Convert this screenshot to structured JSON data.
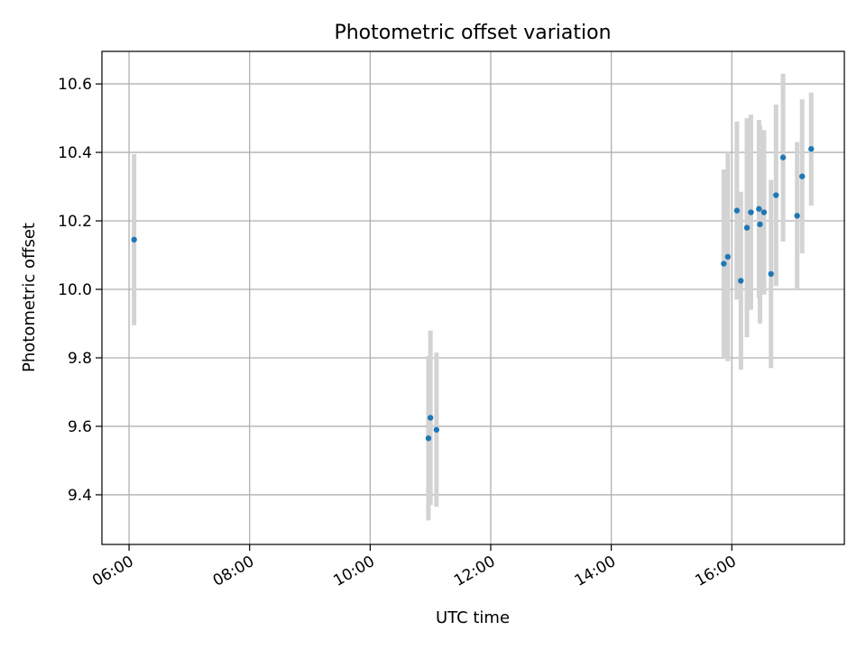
{
  "chart_data": {
    "type": "scatter",
    "title": "Photometric offset variation",
    "xlabel": "UTC time",
    "ylabel": "Photometric offset",
    "x_unit": "UTC time",
    "xlim": [
      "05:33",
      "17:52"
    ],
    "ylim": [
      9.255,
      10.695
    ],
    "grid": true,
    "x_ticks": [
      "06:00",
      "08:00",
      "10:00",
      "12:00",
      "14:00",
      "16:00"
    ],
    "y_ticks": [
      "9.4",
      "9.6",
      "9.8",
      "10.0",
      "10.2",
      "10.4",
      "10.6"
    ],
    "series": [
      {
        "points": [
          {
            "x": "06:05",
            "y": 10.145,
            "yerr": 0.25
          },
          {
            "x": "10:58",
            "y": 9.565,
            "yerr": 0.24
          },
          {
            "x": "11:00",
            "y": 9.625,
            "yerr": 0.255
          },
          {
            "x": "11:06",
            "y": 9.59,
            "yerr": 0.225
          },
          {
            "x": "15:52",
            "y": 10.075,
            "yerr": 0.275
          },
          {
            "x": "15:56",
            "y": 10.095,
            "yerr": 0.305
          },
          {
            "x": "16:05",
            "y": 10.23,
            "yerr": 0.26
          },
          {
            "x": "16:09",
            "y": 10.025,
            "yerr": 0.26
          },
          {
            "x": "16:15",
            "y": 10.18,
            "yerr": 0.32
          },
          {
            "x": "16:19",
            "y": 10.225,
            "yerr": 0.285
          },
          {
            "x": "16:27",
            "y": 10.235,
            "yerr": 0.26
          },
          {
            "x": "16:28",
            "y": 10.19,
            "yerr": 0.29
          },
          {
            "x": "16:32",
            "y": 10.225,
            "yerr": 0.24
          },
          {
            "x": "16:39",
            "y": 10.045,
            "yerr": 0.275
          },
          {
            "x": "16:44",
            "y": 10.275,
            "yerr": 0.265
          },
          {
            "x": "16:51",
            "y": 10.385,
            "yerr": 0.245
          },
          {
            "x": "17:05",
            "y": 10.215,
            "yerr": 0.215
          },
          {
            "x": "17:10",
            "y": 10.33,
            "yerr": 0.225
          },
          {
            "x": "17:19",
            "y": 10.41,
            "yerr": 0.165
          }
        ]
      }
    ],
    "colors": {
      "point": "#1f77b4",
      "errorbar": "#d3d3d3",
      "grid": "#b0b0b0",
      "axis": "#000000"
    }
  }
}
